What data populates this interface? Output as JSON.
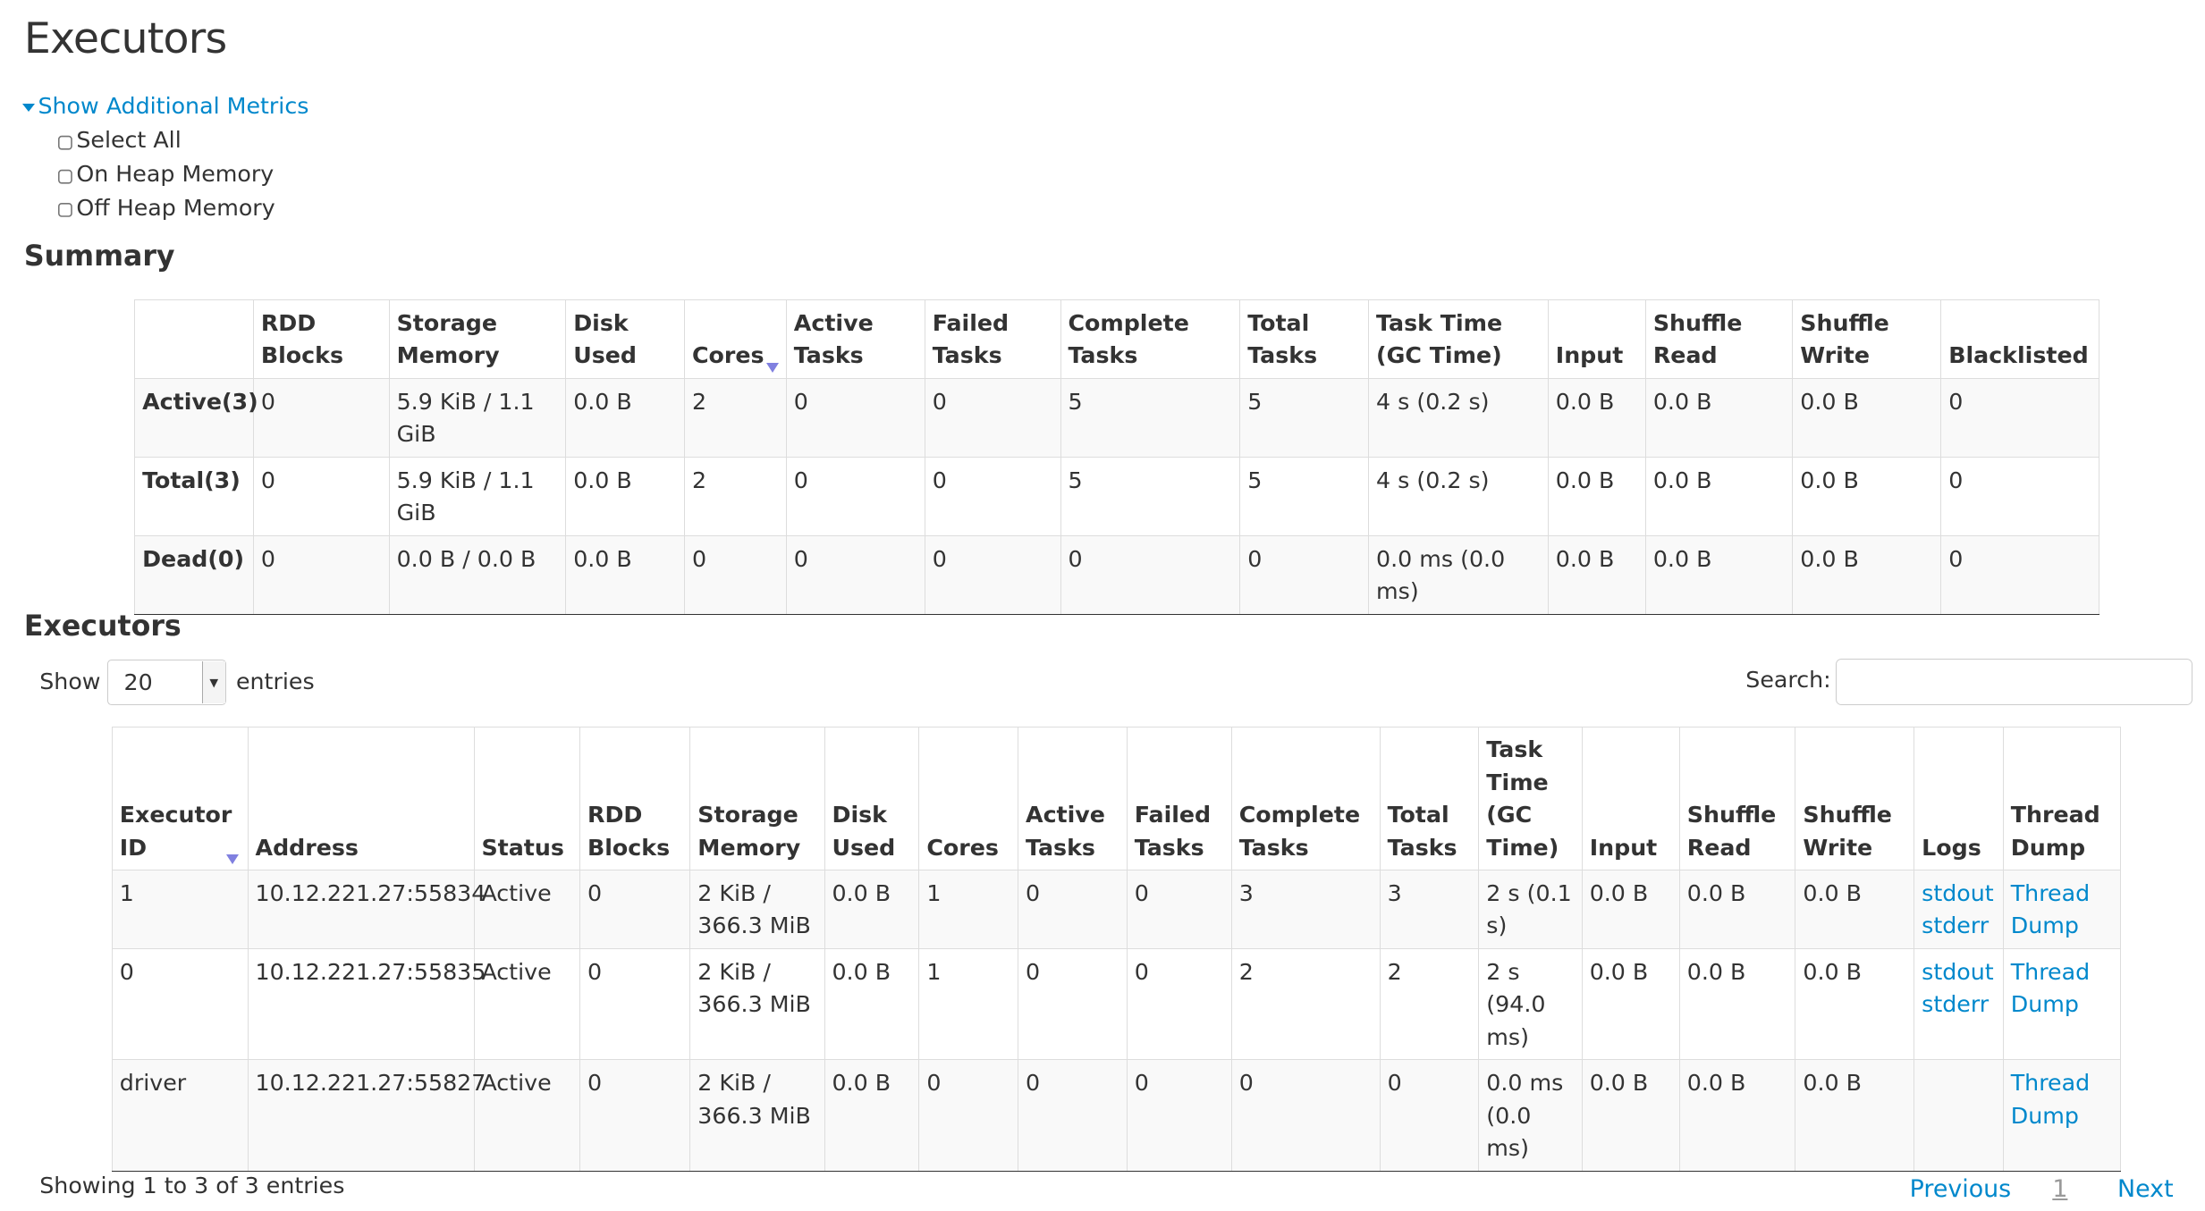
{
  "page_title": "Executors",
  "metrics": {
    "toggle_label": "Show Additional Metrics",
    "options": [
      {
        "label": "Select All",
        "checked": false
      },
      {
        "label": "On Heap Memory",
        "checked": false
      },
      {
        "label": "Off Heap Memory",
        "checked": false
      }
    ]
  },
  "summary": {
    "title": "Summary",
    "headers": [
      "",
      "RDD Blocks",
      "Storage Memory",
      "Disk Used",
      "Cores",
      "Active Tasks",
      "Failed Tasks",
      "Complete Tasks",
      "Total Tasks",
      "Task Time (GC Time)",
      "Input",
      "Shuffle Read",
      "Shuffle Write",
      "Blacklisted"
    ],
    "sorted_column": "Cores",
    "rows": [
      [
        "Active(3)",
        "0",
        "5.9 KiB / 1.1 GiB",
        "0.0 B",
        "2",
        "0",
        "0",
        "5",
        "5",
        "4 s (0.2 s)",
        "0.0 B",
        "0.0 B",
        "0.0 B",
        "0"
      ],
      [
        "Total(3)",
        "0",
        "5.9 KiB / 1.1 GiB",
        "0.0 B",
        "2",
        "0",
        "0",
        "5",
        "5",
        "4 s (0.2 s)",
        "0.0 B",
        "0.0 B",
        "0.0 B",
        "0"
      ],
      [
        "Dead(0)",
        "0",
        "0.0 B / 0.0 B",
        "0.0 B",
        "0",
        "0",
        "0",
        "0",
        "0",
        "0.0 ms (0.0 ms)",
        "0.0 B",
        "0.0 B",
        "0.0 B",
        "0"
      ]
    ]
  },
  "executors": {
    "title": "Executors",
    "show_label": "Show",
    "page_size": "20",
    "entries_label": "entries",
    "search_label": "Search:",
    "search_value": "",
    "headers": [
      "Executor ID",
      "Address",
      "Status",
      "RDD Blocks",
      "Storage Memory",
      "Disk Used",
      "Cores",
      "Active Tasks",
      "Failed Tasks",
      "Complete Tasks",
      "Total Tasks",
      "Task Time (GC Time)",
      "Input",
      "Shuffle Read",
      "Shuffle Write",
      "Logs",
      "Thread Dump"
    ],
    "sorted_column": "Executor ID",
    "rows": [
      {
        "cells": [
          "1",
          "10.12.221.27:55834",
          "Active",
          "0",
          "2 KiB / 366.3 MiB",
          "0.0 B",
          "1",
          "0",
          "0",
          "3",
          "3",
          "2 s (0.1 s)",
          "0.0 B",
          "0.0 B",
          "0.0 B"
        ],
        "logs": [
          "stdout",
          "stderr"
        ],
        "thread_dump": "Thread Dump"
      },
      {
        "cells": [
          "0",
          "10.12.221.27:55835",
          "Active",
          "0",
          "2 KiB / 366.3 MiB",
          "0.0 B",
          "1",
          "0",
          "0",
          "2",
          "2",
          "2 s (94.0 ms)",
          "0.0 B",
          "0.0 B",
          "0.0 B"
        ],
        "logs": [
          "stdout",
          "stderr"
        ],
        "thread_dump": "Thread Dump"
      },
      {
        "cells": [
          "driver",
          "10.12.221.27:55827",
          "Active",
          "0",
          "2 KiB / 366.3 MiB",
          "0.0 B",
          "0",
          "0",
          "0",
          "0",
          "0",
          "0.0 ms (0.0 ms)",
          "0.0 B",
          "0.0 B",
          "0.0 B"
        ],
        "logs": [],
        "thread_dump": "Thread Dump"
      }
    ],
    "info": "Showing 1 to 3 of 3 entries",
    "pagination": {
      "previous": "Previous",
      "current": "1",
      "next": "Next"
    }
  },
  "colors": {
    "link": "#0088cc",
    "text": "#333333",
    "sort_arrow": "#8080e0"
  }
}
